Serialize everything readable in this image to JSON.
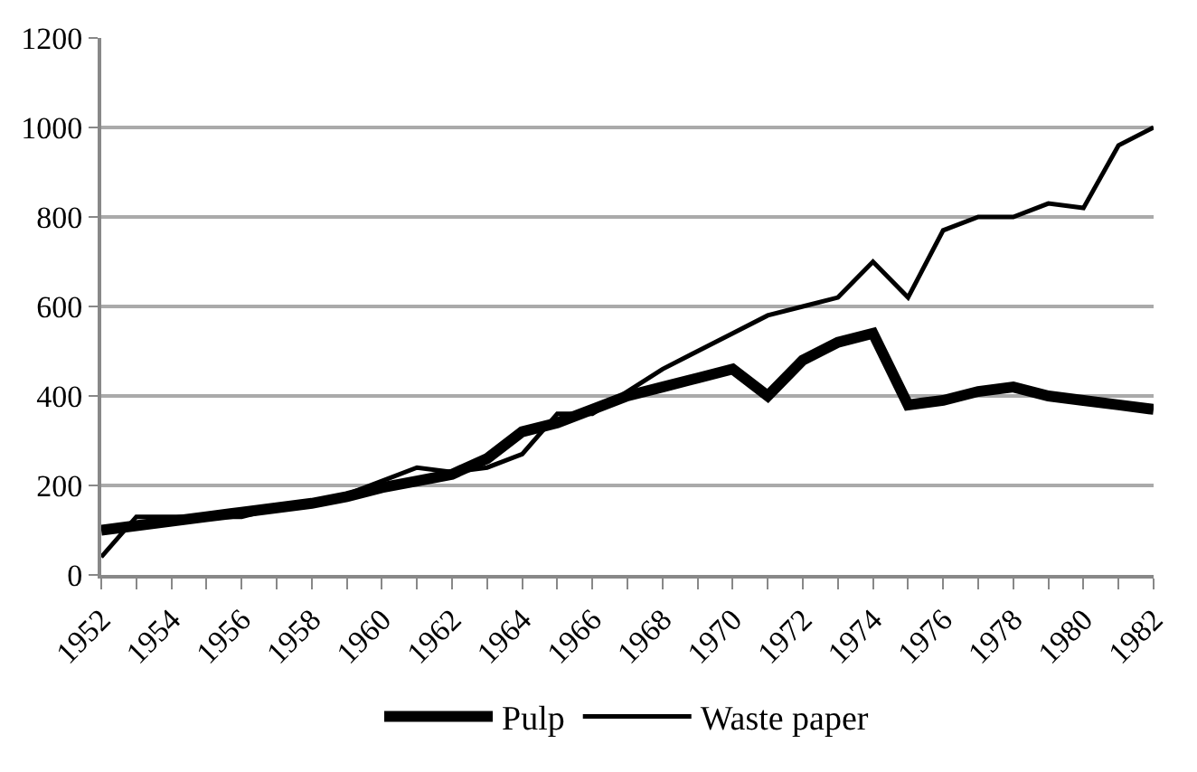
{
  "chart_data": {
    "type": "line",
    "x": [
      1952,
      1953,
      1954,
      1955,
      1956,
      1957,
      1958,
      1959,
      1960,
      1961,
      1962,
      1963,
      1964,
      1965,
      1966,
      1967,
      1968,
      1969,
      1970,
      1971,
      1972,
      1973,
      1974,
      1975,
      1976,
      1977,
      1978,
      1979,
      1980,
      1981,
      1982
    ],
    "series": [
      {
        "name": "Pulp",
        "color": "#000000",
        "values": [
          100,
          110,
          120,
          130,
          140,
          150,
          160,
          175,
          195,
          210,
          225,
          260,
          320,
          340,
          370,
          400,
          420,
          440,
          460,
          400,
          480,
          520,
          540,
          380,
          390,
          410,
          420,
          400,
          390,
          380,
          370
        ]
      },
      {
        "name": "Waste paper",
        "color": "#000000",
        "values": [
          40,
          130,
          130,
          130,
          130,
          150,
          165,
          180,
          210,
          240,
          230,
          240,
          270,
          360,
          360,
          410,
          460,
          500,
          540,
          580,
          600,
          620,
          700,
          620,
          770,
          800,
          800,
          830,
          820,
          960,
          1000
        ]
      }
    ],
    "xlim": [
      1952,
      1982
    ],
    "xticks": [
      1952,
      {
        "value": 1953,
        "label": null
      },
      1954,
      {
        "value": 1955,
        "label": null
      },
      1956,
      {
        "value": 1957,
        "label": null
      },
      1958,
      {
        "value": 1959,
        "label": null
      },
      1960,
      {
        "value": 1961,
        "label": null
      },
      1962,
      {
        "value": 1963,
        "label": null
      },
      1964,
      {
        "value": 1965,
        "label": null
      },
      1966,
      {
        "value": 1967,
        "label": null
      },
      1968,
      {
        "value": 1969,
        "label": null
      },
      1970,
      {
        "value": 1971,
        "label": null
      },
      1972,
      {
        "value": 1973,
        "label": null
      },
      1974,
      {
        "value": 1975,
        "label": null
      },
      1976,
      {
        "value": 1977,
        "label": null
      },
      1978,
      {
        "value": 1979,
        "label": null
      },
      1980,
      {
        "value": 1981,
        "label": null
      },
      1982
    ],
    "ylim": [
      0,
      1200
    ],
    "yticks": [
      0,
      200,
      400,
      600,
      800,
      1000,
      1200
    ],
    "grid": "y",
    "legend": "bottom",
    "marker": "none",
    "line_style": "solid"
  }
}
